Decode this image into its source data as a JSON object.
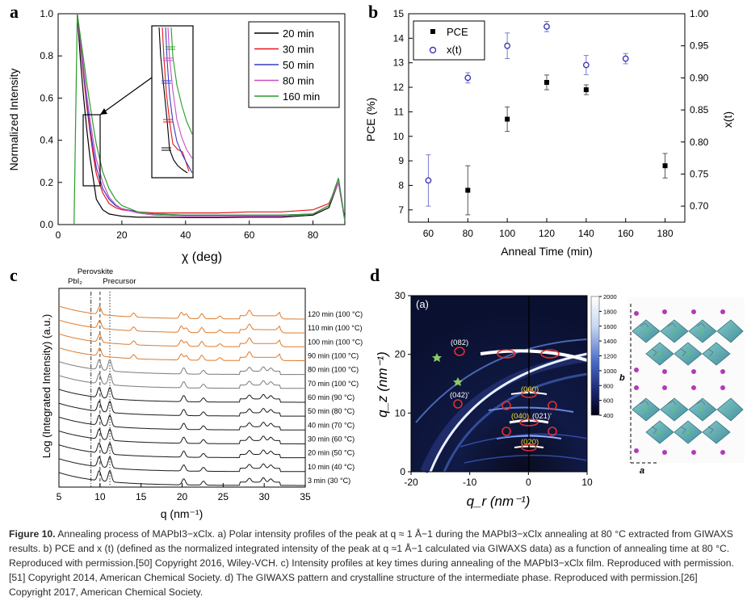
{
  "panel_labels": {
    "a": "a",
    "b": "b",
    "c": "c",
    "d": "d"
  },
  "caption": {
    "lead": "Figure 10.",
    "body": "Annealing process of MAPbI3−xClx. a) Polar intensity profiles of the peak at q ≈ 1 Å−1 during the MAPbI3−xClx annealing at 80 °C extracted from GIWAXS results. b) PCE and x (t) (defined as the normalized integrated intensity of the peak at q ≈1 Å−1 calculated via GIWAXS data) as a function of annealing time at 80 °C. Reproduced with permission.[50] Copyright 2016, Wiley-VCH. c) Intensity profiles at key times during annealing of the MAPbI3−xClx film. Reproduced with permission.[51] Copyright 2014, American Chemical Society. d) The GIWAXS pattern and crystalline structure of the intermediate phase. Reproduced with permission.[26] Copyright 2017, American Chemical Society."
  },
  "chart_data": [
    {
      "id": "a",
      "type": "line",
      "xlabel": "χ (deg)",
      "ylabel": "Normalized Intensity",
      "xlim": [
        0,
        90
      ],
      "ylim": [
        0,
        1.0
      ],
      "xticks": [
        "0",
        "20",
        "40",
        "60",
        "80"
      ],
      "yticks": [
        "0.0",
        "0.2",
        "0.4",
        "0.6",
        "0.8",
        "1.0"
      ],
      "legend_position": "top-right",
      "series": [
        {
          "name": "20 min",
          "color": "#000000",
          "x": [
            6,
            7,
            8,
            9,
            10,
            11,
            12,
            14,
            16,
            18,
            20,
            25,
            30,
            40,
            50,
            60,
            70,
            80,
            85,
            88,
            90
          ],
          "y": [
            1.0,
            0.78,
            0.6,
            0.45,
            0.32,
            0.22,
            0.12,
            0.07,
            0.05,
            0.045,
            0.04,
            0.035,
            0.035,
            0.033,
            0.033,
            0.035,
            0.035,
            0.045,
            0.08,
            0.2,
            0.02
          ]
        },
        {
          "name": "30 min",
          "color": "#e8141b",
          "x": [
            6,
            7,
            8,
            9,
            10,
            11,
            12,
            14,
            16,
            18,
            20,
            25,
            30,
            40,
            50,
            60,
            70,
            80,
            85,
            88,
            90
          ],
          "y": [
            1.0,
            0.85,
            0.7,
            0.56,
            0.44,
            0.33,
            0.24,
            0.15,
            0.1,
            0.08,
            0.07,
            0.06,
            0.055,
            0.055,
            0.055,
            0.06,
            0.06,
            0.07,
            0.1,
            0.2,
            0.02
          ]
        },
        {
          "name": "50 min",
          "color": "#3a3ac8",
          "x": [
            6,
            7,
            8,
            9,
            10,
            11,
            12,
            14,
            16,
            18,
            20,
            25,
            30,
            40,
            50,
            60,
            70,
            80,
            85,
            88,
            90
          ],
          "y": [
            1.0,
            0.86,
            0.72,
            0.58,
            0.46,
            0.36,
            0.27,
            0.17,
            0.12,
            0.09,
            0.075,
            0.06,
            0.05,
            0.045,
            0.045,
            0.045,
            0.045,
            0.05,
            0.09,
            0.22,
            0.02
          ]
        },
        {
          "name": "80 min",
          "color": "#c850c0",
          "x": [
            6,
            7,
            8,
            9,
            10,
            11,
            12,
            14,
            16,
            18,
            20,
            25,
            30,
            40,
            50,
            60,
            70,
            80,
            85,
            88,
            90
          ],
          "y": [
            1.0,
            0.87,
            0.74,
            0.61,
            0.5,
            0.4,
            0.31,
            0.2,
            0.13,
            0.095,
            0.075,
            0.055,
            0.045,
            0.04,
            0.04,
            0.04,
            0.04,
            0.05,
            0.09,
            0.2,
            0.02
          ]
        },
        {
          "name": "160 min",
          "color": "#2a9a2a",
          "x": [
            5,
            6,
            7,
            8,
            9,
            10,
            11,
            12,
            14,
            16,
            18,
            20,
            25,
            30,
            40,
            50,
            60,
            70,
            80,
            85,
            88,
            90
          ],
          "y": [
            0.0,
            1.0,
            0.89,
            0.78,
            0.67,
            0.57,
            0.47,
            0.38,
            0.25,
            0.17,
            0.12,
            0.09,
            0.06,
            0.05,
            0.045,
            0.045,
            0.045,
            0.045,
            0.05,
            0.09,
            0.22,
            0.02
          ]
        }
      ]
    },
    {
      "id": "b",
      "type": "scatter",
      "xlabel": "Anneal Time (min)",
      "ylabel": "PCE (%)",
      "y2label": "x(t)",
      "xlim": [
        50,
        190
      ],
      "ylim": [
        6.5,
        15
      ],
      "y2lim": [
        0.675,
        1.0
      ],
      "xticks": [
        "60",
        "80",
        "100",
        "120",
        "140",
        "160",
        "180"
      ],
      "yticks": [
        "7",
        "8",
        "9",
        "10",
        "11",
        "12",
        "13",
        "14",
        "15"
      ],
      "y2ticks": [
        "0.70",
        "0.75",
        "0.80",
        "0.85",
        "0.90",
        "0.95",
        "1.00"
      ],
      "legend_position": "top-left",
      "series": [
        {
          "name": "PCE",
          "axis": "left",
          "marker": "square",
          "color": "#000000",
          "x": [
            80,
            100,
            120,
            140,
            180
          ],
          "y": [
            7.8,
            10.7,
            12.2,
            11.9,
            8.8
          ],
          "err": [
            1.0,
            0.5,
            0.3,
            0.2,
            0.5
          ]
        },
        {
          "name": "x(t)",
          "axis": "right",
          "marker": "circle-open",
          "color": "#3a3ab8",
          "x": [
            60,
            80,
            100,
            120,
            140,
            160
          ],
          "y": [
            0.74,
            0.9,
            0.95,
            0.98,
            0.92,
            0.93
          ],
          "err": [
            0.04,
            0.008,
            0.02,
            0.008,
            0.015,
            0.008
          ]
        }
      ]
    },
    {
      "id": "c",
      "type": "line",
      "xlabel": "q (nm⁻¹)",
      "ylabel": "Log (Integrated Intensity) (a.u.)",
      "xlim": [
        5,
        35
      ],
      "xticks": [
        "5",
        "10",
        "15",
        "20",
        "25",
        "30",
        "35"
      ],
      "reference_lines": [
        {
          "label": "PbI₂",
          "x": 8.9,
          "style": "dash-dot"
        },
        {
          "label": "Perovskite",
          "x": 10,
          "style": "dash"
        },
        {
          "label": "Precursor",
          "x": 11.2,
          "style": "dotted"
        }
      ],
      "series": [
        {
          "name": "3 min (30 °C)",
          "color": "#1a1a1a"
        },
        {
          "name": "10 min (40 °C)",
          "color": "#1a1a1a"
        },
        {
          "name": "20 min (50 °C)",
          "color": "#1a1a1a"
        },
        {
          "name": "30 min (60 °C)",
          "color": "#1a1a1a"
        },
        {
          "name": "40 min (70 °C)",
          "color": "#1a1a1a"
        },
        {
          "name": "50 min (80 °C)",
          "color": "#1a1a1a"
        },
        {
          "name": "60 min (90 °C)",
          "color": "#1a1a1a"
        },
        {
          "name": "70 min (100 °C)",
          "color": "#7a7a7a"
        },
        {
          "name": "80 min (100 °C)",
          "color": "#7a7a7a"
        },
        {
          "name": "90 min (100 °C)",
          "color": "#e07a2a"
        },
        {
          "name": "100 min (100 °C)",
          "color": "#e07a2a"
        },
        {
          "name": "110 min (100 °C)",
          "color": "#e07a2a"
        },
        {
          "name": "120 min (100 °C)",
          "color": "#e07a2a"
        }
      ]
    },
    {
      "id": "d",
      "type": "heatmap",
      "inner_label": "(a)",
      "xlabel": "q_r (nm⁻¹)",
      "ylabel": "q_z (nm⁻¹)",
      "xlim": [
        -20,
        10
      ],
      "ylim": [
        0,
        30
      ],
      "xticks": [
        "-20",
        "-10",
        "0",
        "10"
      ],
      "yticks": [
        "0",
        "10",
        "20",
        "30"
      ],
      "colorbar_ticks": [
        "2000",
        "1800",
        "1600",
        "1400",
        "1200",
        "1000",
        "800",
        "600",
        "400"
      ],
      "colorbar_range": [
        400,
        2000
      ],
      "peak_labels": [
        "(082)",
        "(042)'",
        "(060)",
        "(040)",
        "(021)'",
        "(020)"
      ],
      "structure_axis_labels": [
        "b",
        "a"
      ]
    }
  ]
}
